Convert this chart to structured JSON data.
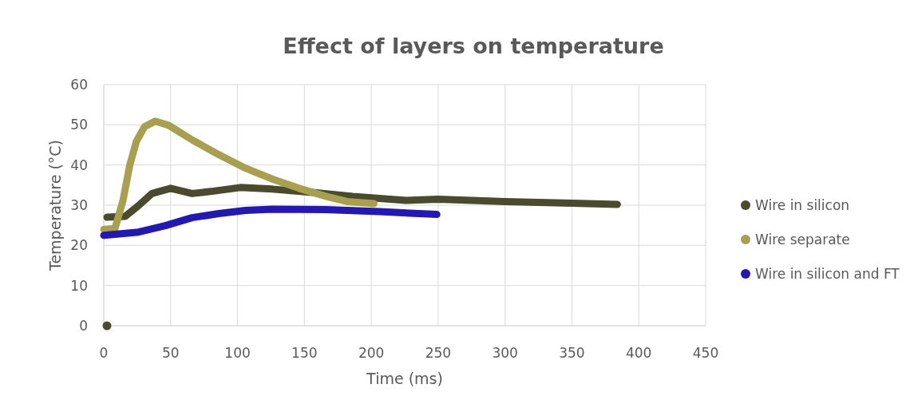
{
  "chart_data": {
    "type": "line",
    "title": "Effect of layers on temperature",
    "xlabel": "Time (ms)",
    "ylabel": "Temperature (°C)",
    "xlim": [
      0,
      450
    ],
    "xticks": [
      0,
      50,
      100,
      150,
      200,
      250,
      300,
      350,
      400,
      450
    ],
    "ylim": [
      0,
      60
    ],
    "yticks": [
      0,
      10,
      20,
      30,
      40,
      50,
      60
    ],
    "grid": true,
    "legend": "right",
    "series": [
      {
        "name": "Wire in silicon",
        "color": "#4a4a2e",
        "x": [
          2.4,
          16,
          26,
          36,
          50,
          66,
          82,
          102,
          126,
          156,
          186,
          226,
          250,
          300,
          350,
          384
        ],
        "values": [
          27,
          27.2,
          29.9,
          32.9,
          34.2,
          32.9,
          33.5,
          34.4,
          34,
          33.2,
          32.2,
          31.2,
          31.5,
          30.9,
          30.5,
          30.2
        ]
      },
      {
        "name": "Wire separate",
        "color": "#a8a050",
        "x": [
          0,
          8.4,
          14.4,
          19.4,
          24.4,
          30.4,
          38.4,
          48.4,
          66.4,
          86.4,
          106,
          126,
          146,
          166,
          182,
          202
        ],
        "values": [
          24,
          24.2,
          31.2,
          39.9,
          45.9,
          49.5,
          50.9,
          49.9,
          46.2,
          42.5,
          39.2,
          36.5,
          34.2,
          32.2,
          30.9,
          30.4
        ]
      },
      {
        "name": "Wire in silicon and FT",
        "color": "#2318b0",
        "x": [
          0,
          26,
          46,
          66,
          86,
          106,
          126,
          166,
          206,
          249
        ],
        "values": [
          22.5,
          23.3,
          24.9,
          26.9,
          27.9,
          28.7,
          29,
          28.9,
          28.4,
          27.7
        ]
      },
      {
        "type": "scatter",
        "marker": "circle",
        "color": "#4a4a2e",
        "x": [
          2.4
        ],
        "values": [
          0
        ]
      }
    ]
  }
}
